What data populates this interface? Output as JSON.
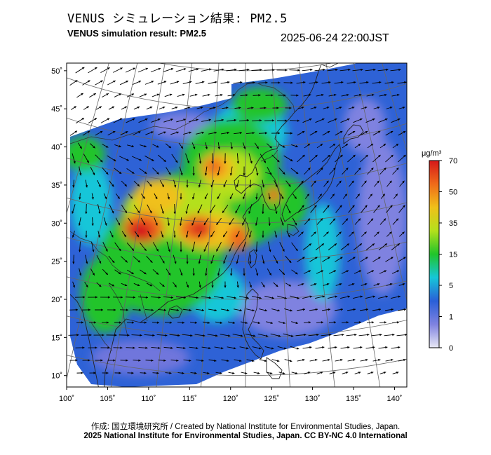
{
  "title_jp": "VENUS シミュレーション結果: PM2.5",
  "title_en": "VENUS simulation result: PM2.5",
  "timestamp": "2025-06-24 22:00JST",
  "map": {
    "lon_range": [
      100,
      141.5
    ],
    "lat_range": [
      8.5,
      51
    ],
    "lon_ticks": [
      "100˚",
      "105˚",
      "110˚",
      "115˚",
      "120˚",
      "125˚",
      "130˚",
      "135˚",
      "140˚"
    ],
    "lat_ticks": [
      "10˚",
      "15˚",
      "20˚",
      "25˚",
      "30˚",
      "35˚",
      "40˚",
      "45˚",
      "50˚"
    ]
  },
  "colorbar": {
    "unit": "μg/m³",
    "labels": [
      "70",
      "50",
      "35",
      "15",
      "5",
      "1",
      "0"
    ],
    "colors": [
      "#e8e8f4",
      "#7f82e0",
      "#2a5fd8",
      "#16c6d8",
      "#21c42a",
      "#b4e01c",
      "#f0c01a",
      "#ef6a1a",
      "#d6181a"
    ]
  },
  "credit_line1": "作成: 国立環境研究所 / Created by National Institute for Environmental Studies, Japan.",
  "credit_line2": "2025 National Institute for Environmental Studies, Japan. CC BY-NC 4.0 International"
}
